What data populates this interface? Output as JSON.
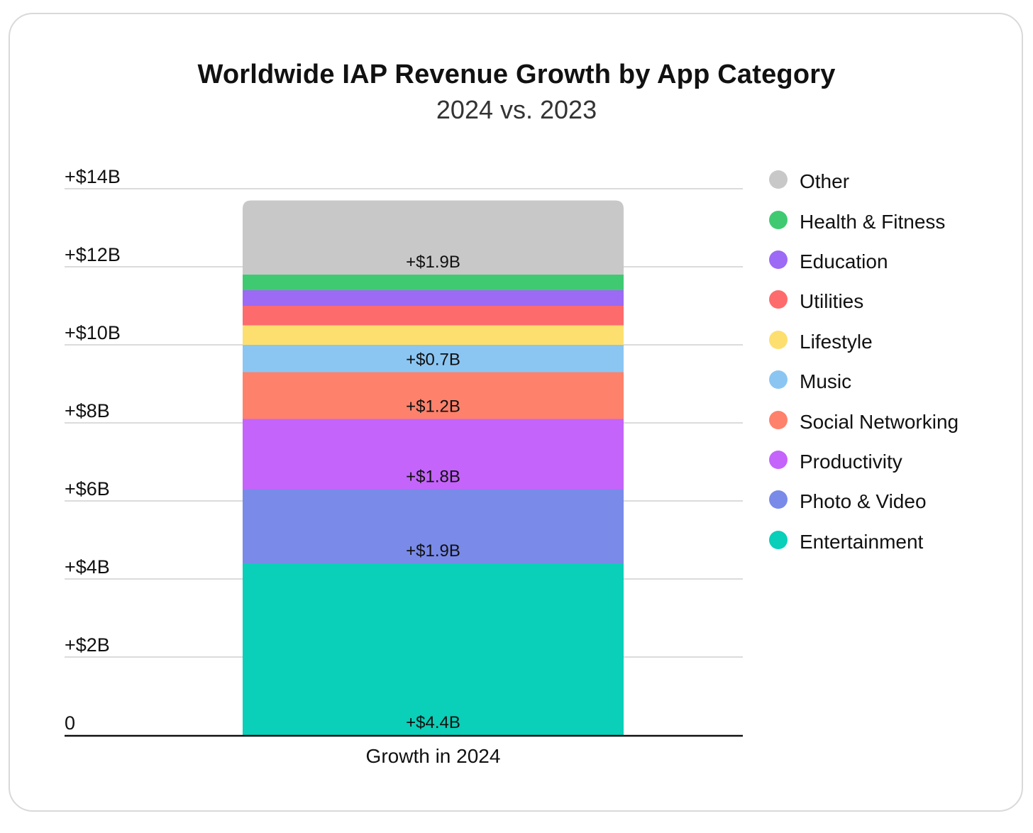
{
  "chart_data": {
    "type": "bar",
    "stacked": true,
    "title": "Worldwide IAP Revenue Growth by App Category",
    "subtitle": "2024 vs. 2023",
    "categories": [
      "Growth in 2024"
    ],
    "xlabel": "Growth in 2024",
    "ylabel": "",
    "ylim": [
      0,
      14
    ],
    "yticks": [
      {
        "value": 0,
        "label": "0"
      },
      {
        "value": 2,
        "label": "+$2B"
      },
      {
        "value": 4,
        "label": "+$4B"
      },
      {
        "value": 6,
        "label": "+$6B"
      },
      {
        "value": 8,
        "label": "+$8B"
      },
      {
        "value": 10,
        "label": "+$10B"
      },
      {
        "value": 12,
        "label": "+$12B"
      },
      {
        "value": 14,
        "label": "+$14B"
      }
    ],
    "grid": true,
    "legend_position": "right",
    "series": [
      {
        "name": "Entertainment",
        "values": [
          4.4
        ],
        "label": "+$4.4B",
        "color": "#0acfb9"
      },
      {
        "name": "Photo & Video",
        "values": [
          1.9
        ],
        "label": "+$1.9B",
        "color": "#798ae8"
      },
      {
        "name": "Productivity",
        "values": [
          1.8
        ],
        "label": "+$1.8B",
        "color": "#c464fa"
      },
      {
        "name": "Social Networking",
        "values": [
          1.2
        ],
        "label": "+$1.2B",
        "color": "#fe816b"
      },
      {
        "name": "Music",
        "values": [
          0.7
        ],
        "label": "+$0.7B",
        "color": "#8bc6f3"
      },
      {
        "name": "Lifestyle",
        "values": [
          0.5
        ],
        "label": "",
        "color": "#fddf6f"
      },
      {
        "name": "Utilities",
        "values": [
          0.5
        ],
        "label": "",
        "color": "#fe6b6c"
      },
      {
        "name": "Education",
        "values": [
          0.4
        ],
        "label": "",
        "color": "#9c6af5"
      },
      {
        "name": "Health & Fitness",
        "values": [
          0.4
        ],
        "label": "",
        "color": "#3fca72"
      },
      {
        "name": "Other",
        "values": [
          1.9
        ],
        "label": "+$1.9B",
        "color": "#c8c8c8"
      }
    ],
    "legend_order": [
      "Other",
      "Health & Fitness",
      "Education",
      "Utilities",
      "Lifestyle",
      "Music",
      "Social Networking",
      "Productivity",
      "Photo & Video",
      "Entertainment"
    ]
  }
}
